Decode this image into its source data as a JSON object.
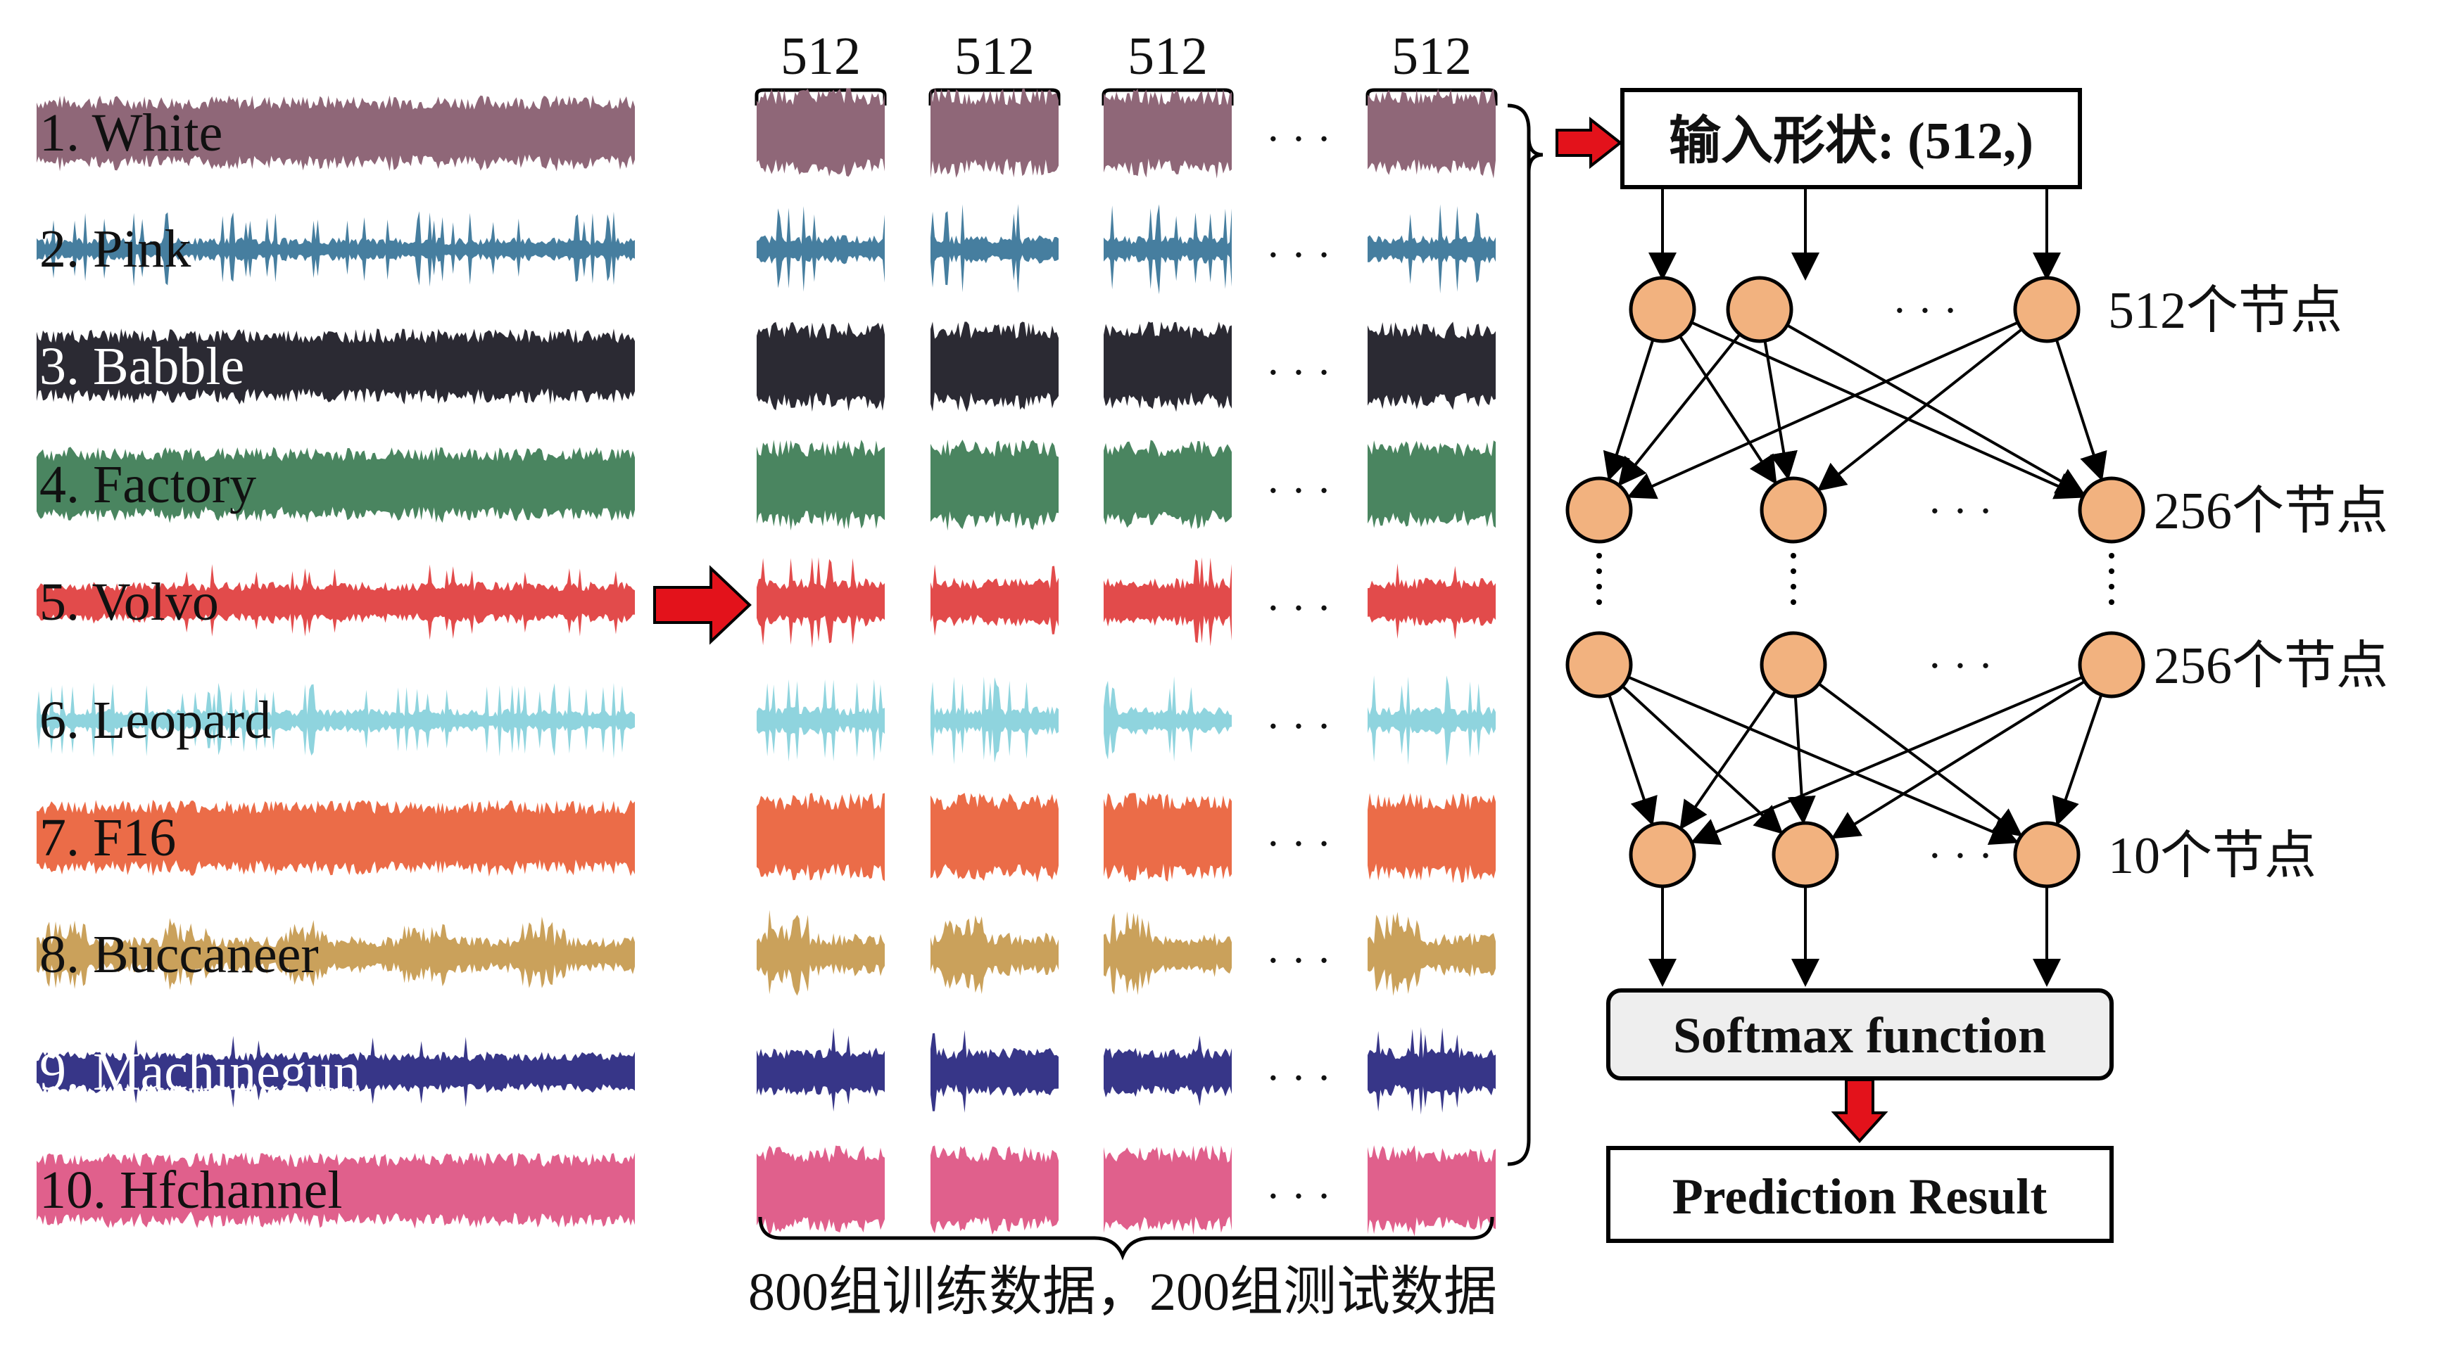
{
  "noise_types": [
    {
      "label": "1. White",
      "color": "#8f6778",
      "label_color": "#111111",
      "style": "dense"
    },
    {
      "label": "2. Pink",
      "color": "#467e9f",
      "label_color": "#111111",
      "style": "spiky"
    },
    {
      "label": "3. Babble",
      "color": "#2b2a33",
      "label_color": "#ffffff",
      "style": "dense"
    },
    {
      "label": "4. Factory",
      "color": "#4a8560",
      "label_color": "#111111",
      "style": "dense"
    },
    {
      "label": "5. Volvo",
      "color": "#e24b4b",
      "label_color": "#111111",
      "style": "burst"
    },
    {
      "label": "6. Leopard",
      "color": "#8fd4de",
      "label_color": "#111111",
      "style": "spiky"
    },
    {
      "label": "7. F16",
      "color": "#eb6c48",
      "label_color": "#111111",
      "style": "dense"
    },
    {
      "label": "8. Buccaneer",
      "color": "#caa15b",
      "label_color": "#111111",
      "style": "bursty"
    },
    {
      "label": "9. Machinegun",
      "color": "#373688",
      "label_color": "#ffffff",
      "style": "burst"
    },
    {
      "label": "10. Hfchannel",
      "color": "#e0608c",
      "label_color": "#111111",
      "style": "dense"
    }
  ],
  "segments": {
    "brace_label": "512",
    "ellipsis": "· · ·",
    "bottom_caption": "800组训练数据，200组测试数据"
  },
  "network": {
    "input_label": "输入形状: (512,)",
    "layer_labels": [
      "512个节点",
      "256个节点",
      "256个节点",
      "10个节点"
    ],
    "dots": "· · ·",
    "softmax_label": "Softmax function",
    "result_label": "Prediction Result"
  },
  "colors": {
    "node_fill": "#f2b27f",
    "arrow_red": "#e3121b",
    "line": "#000000"
  }
}
